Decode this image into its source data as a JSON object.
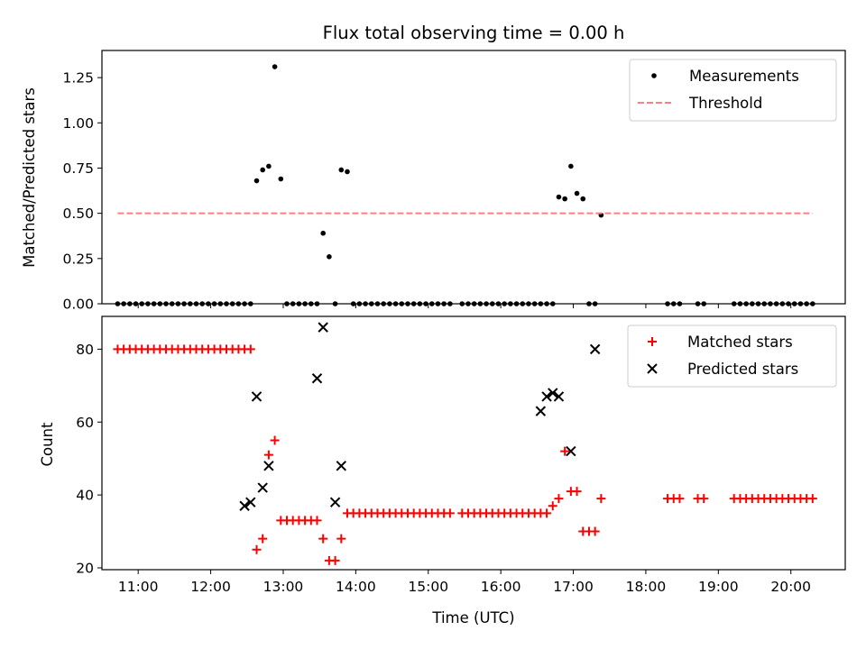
{
  "chart_data": [
    {
      "type": "scatter",
      "title": "Flux total observing time = 0.00 h",
      "xlabel": "",
      "ylabel": "Matched/Predicted stars",
      "ylim": [
        0,
        1.4
      ],
      "yticks": [
        0.0,
        0.25,
        0.5,
        0.75,
        1.0,
        1.25
      ],
      "ytick_labels": [
        "0.00",
        "0.25",
        "0.50",
        "0.75",
        "1.00",
        "1.25"
      ],
      "xlim": [
        "10:30",
        "20:45"
      ],
      "legend": {
        "position": "top-right",
        "labels": [
          "Measurements",
          "Threshold"
        ]
      },
      "series": [
        {
          "name": "Measurements",
          "color": "#000000",
          "marker": "dot",
          "x": [
            "10:43",
            "10:48",
            "10:53",
            "10:58",
            "11:03",
            "11:08",
            "11:13",
            "11:18",
            "11:23",
            "11:28",
            "11:33",
            "11:38",
            "11:43",
            "11:48",
            "11:53",
            "11:58",
            "12:03",
            "12:08",
            "12:13",
            "12:18",
            "12:23",
            "12:28",
            "12:33",
            "12:38",
            "12:43",
            "12:48",
            "12:53",
            "12:58",
            "13:03",
            "13:08",
            "13:13",
            "13:18",
            "13:23",
            "13:28",
            "13:33",
            "13:38",
            "13:43",
            "13:48",
            "13:53",
            "13:58",
            "14:03",
            "14:08",
            "14:13",
            "14:18",
            "14:23",
            "14:28",
            "14:33",
            "14:38",
            "14:43",
            "14:48",
            "14:53",
            "14:58",
            "15:03",
            "15:08",
            "15:13",
            "15:18",
            "15:28",
            "15:33",
            "15:38",
            "15:43",
            "15:48",
            "15:53",
            "15:58",
            "16:03",
            "16:08",
            "16:13",
            "16:18",
            "16:23",
            "16:28",
            "16:33",
            "16:38",
            "16:43",
            "16:48",
            "16:53",
            "16:58",
            "17:03",
            "17:08",
            "17:13",
            "17:18",
            "17:23",
            "18:18",
            "18:23",
            "18:28",
            "18:43",
            "18:48",
            "19:13",
            "19:18",
            "19:23",
            "19:28",
            "19:33",
            "19:38",
            "19:43",
            "19:48",
            "19:53",
            "19:58",
            "20:03",
            "20:08",
            "20:13",
            "20:18"
          ],
          "y": [
            0,
            0,
            0,
            0,
            0,
            0,
            0,
            0,
            0,
            0,
            0,
            0,
            0,
            0,
            0,
            0,
            0,
            0,
            0,
            0,
            0,
            0,
            0,
            0.68,
            0.74,
            0.76,
            1.31,
            0.69,
            0,
            0,
            0,
            0,
            0,
            0,
            0.39,
            0.26,
            0,
            0.74,
            0.73,
            0,
            0,
            0,
            0,
            0,
            0,
            0,
            0,
            0,
            0,
            0,
            0,
            0,
            0,
            0,
            0,
            0,
            0,
            0,
            0,
            0,
            0,
            0,
            0,
            0,
            0,
            0,
            0,
            0,
            0,
            0,
            0,
            0,
            0.59,
            0.58,
            0.76,
            0.61,
            0.58,
            0,
            0,
            0.49,
            0,
            0,
            0,
            0,
            0,
            0,
            0,
            0,
            0,
            0,
            0,
            0,
            0,
            0,
            0,
            0,
            0,
            0,
            0
          ]
        },
        {
          "name": "Threshold",
          "color": "#ff7f7f",
          "style": "dashed",
          "x": [
            "10:43",
            "20:18"
          ],
          "y": [
            0.5,
            0.5
          ]
        }
      ]
    },
    {
      "type": "scatter",
      "title": "",
      "xlabel": "Time (UTC)",
      "ylabel": "Count",
      "ylim": [
        19.5,
        89
      ],
      "yticks": [
        20,
        40,
        60,
        80
      ],
      "ytick_labels": [
        "20",
        "40",
        "60",
        "80"
      ],
      "xlim": [
        "10:30",
        "20:45"
      ],
      "xticks": [
        "11:00",
        "12:00",
        "13:00",
        "14:00",
        "15:00",
        "16:00",
        "17:00",
        "18:00",
        "19:00",
        "20:00"
      ],
      "xtick_labels": [
        "11:00",
        "12:00",
        "13:00",
        "14:00",
        "15:00",
        "16:00",
        "17:00",
        "18:00",
        "19:00",
        "20:00"
      ],
      "legend": {
        "position": "top-right",
        "labels": [
          "Matched stars",
          "Predicted stars"
        ]
      },
      "series": [
        {
          "name": "Matched stars",
          "color": "#ff0000",
          "marker": "plus",
          "x": [
            "10:43",
            "10:48",
            "10:53",
            "10:58",
            "11:03",
            "11:08",
            "11:13",
            "11:18",
            "11:23",
            "11:28",
            "11:33",
            "11:38",
            "11:43",
            "11:48",
            "11:53",
            "11:58",
            "12:03",
            "12:08",
            "12:13",
            "12:18",
            "12:23",
            "12:28",
            "12:33",
            "12:38",
            "12:43",
            "12:48",
            "12:53",
            "12:58",
            "13:03",
            "13:08",
            "13:13",
            "13:18",
            "13:23",
            "13:28",
            "13:33",
            "13:38",
            "13:43",
            "13:48",
            "13:53",
            "13:58",
            "14:03",
            "14:08",
            "14:13",
            "14:18",
            "14:23",
            "14:28",
            "14:33",
            "14:38",
            "14:43",
            "14:48",
            "14:53",
            "14:58",
            "15:03",
            "15:08",
            "15:13",
            "15:18",
            "15:28",
            "15:33",
            "15:38",
            "15:43",
            "15:48",
            "15:53",
            "15:58",
            "16:03",
            "16:08",
            "16:13",
            "16:18",
            "16:23",
            "16:28",
            "16:33",
            "16:38",
            "16:43",
            "16:48",
            "16:53",
            "16:58",
            "17:03",
            "17:08",
            "17:13",
            "17:18",
            "17:23",
            "18:18",
            "18:23",
            "18:28",
            "18:43",
            "18:48",
            "19:13",
            "19:18",
            "19:23",
            "19:28",
            "19:33",
            "19:38",
            "19:43",
            "19:48",
            "19:53",
            "19:58",
            "20:03",
            "20:08",
            "20:13",
            "20:18"
          ],
          "y": [
            80,
            80,
            80,
            80,
            80,
            80,
            80,
            80,
            80,
            80,
            80,
            80,
            80,
            80,
            80,
            80,
            80,
            80,
            80,
            80,
            80,
            80,
            80,
            25,
            28,
            51,
            55,
            33,
            33,
            33,
            33,
            33,
            33,
            33,
            28,
            22,
            22,
            28,
            35,
            35,
            35,
            35,
            35,
            35,
            35,
            35,
            35,
            35,
            35,
            35,
            35,
            35,
            35,
            35,
            35,
            35,
            35,
            35,
            35,
            35,
            35,
            35,
            35,
            35,
            35,
            35,
            35,
            35,
            35,
            35,
            35,
            37,
            39,
            52,
            41,
            41,
            30,
            30,
            30,
            39,
            39,
            39,
            39,
            39,
            39,
            39,
            39,
            39,
            39,
            39,
            39,
            39,
            39,
            39,
            39,
            39,
            39,
            39,
            39
          ]
        },
        {
          "name": "Predicted stars",
          "color": "#000000",
          "marker": "x",
          "x": [
            "12:28",
            "12:33",
            "12:38",
            "12:43",
            "12:48",
            "13:28",
            "13:33",
            "13:43",
            "13:48",
            "16:33",
            "16:38",
            "16:43",
            "16:48",
            "16:58",
            "17:18"
          ],
          "y": [
            37,
            38,
            67,
            42,
            48,
            72,
            86,
            38,
            48,
            63,
            67,
            68,
            67,
            52,
            80
          ]
        }
      ]
    }
  ]
}
